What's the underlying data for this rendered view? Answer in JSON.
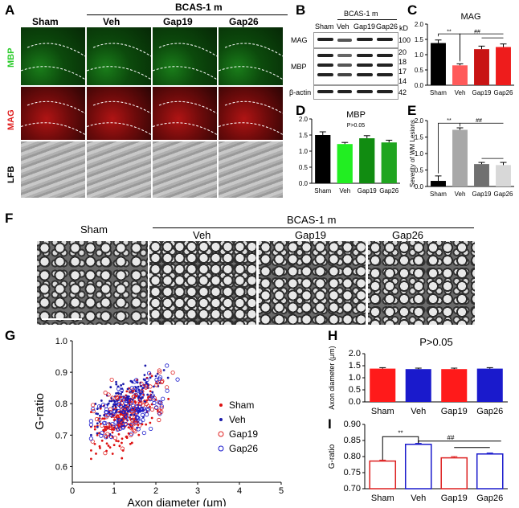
{
  "panels": {
    "A": "A",
    "B": "B",
    "C": "C",
    "D": "D",
    "E": "E",
    "F": "F",
    "G": "G",
    "H": "H",
    "I": "I"
  },
  "panel_a": {
    "groups": [
      "Sham",
      "Veh",
      "Gap19",
      "Gap26"
    ],
    "bcas_label": "BCAS-1 m",
    "rows": [
      "MBP",
      "MAG",
      "LFB"
    ],
    "colors": {
      "mbp": "#2ecc2e",
      "mag": "#e01e1e",
      "lfb": "#000000"
    }
  },
  "panel_b": {
    "bcas_label": "BCAS-1 m",
    "lanes": [
      "Sham",
      "Veh",
      "Gap19",
      "Gap26"
    ],
    "kd_label": "kD",
    "rows": [
      {
        "label": "MAG",
        "mw": [
          "100"
        ]
      },
      {
        "label": "MBP",
        "mw": [
          "20",
          "18",
          "17",
          "14"
        ]
      },
      {
        "label": "β-actin",
        "mw": [
          "42"
        ]
      }
    ]
  },
  "chart_data": [
    {
      "id": "C",
      "type": "bar",
      "title": "MAG",
      "categories": [
        "Sham",
        "Veh",
        "Gap19",
        "Gap26"
      ],
      "values": [
        1.38,
        0.65,
        1.18,
        1.25
      ],
      "errors": [
        0.1,
        0.05,
        0.1,
        0.1
      ],
      "colors": [
        "#000000",
        "#ff5a5a",
        "#c81414",
        "#ee1c1c"
      ],
      "ylim": [
        0,
        2.0
      ],
      "yticks": [
        "0.0",
        "0.5",
        "1.0",
        "1.5",
        "2.0"
      ],
      "annotations": [
        "**",
        "##"
      ]
    },
    {
      "id": "D",
      "type": "bar",
      "title": "MBP",
      "subtitle": "P>0.05",
      "categories": [
        "Sham",
        "Veh",
        "Gap19",
        "Gap26"
      ],
      "values": [
        1.5,
        1.22,
        1.4,
        1.27
      ],
      "errors": [
        0.1,
        0.05,
        0.08,
        0.07
      ],
      "colors": [
        "#000000",
        "#22ee22",
        "#118c11",
        "#1fa51f"
      ],
      "ylim": [
        0,
        2.0
      ],
      "yticks": [
        "0.0",
        "0.5",
        "1.0",
        "1.5",
        "2.0"
      ]
    },
    {
      "id": "E",
      "type": "bar",
      "ylabel": "Severity of  WM Lesions",
      "categories": [
        "Sham",
        "Veh",
        "Gap19",
        "Gap26"
      ],
      "values": [
        0.17,
        1.72,
        0.68,
        0.65
      ],
      "errors": [
        0.15,
        0.06,
        0.05,
        0.08
      ],
      "colors": [
        "#000000",
        "#a8a8a8",
        "#707070",
        "#d8d8d8"
      ],
      "ylim": [
        0,
        2.0
      ],
      "yticks": [
        "0.0",
        "0.5",
        "1.0",
        "1.5",
        "2.0"
      ],
      "annotations": [
        "**",
        "##"
      ]
    },
    {
      "id": "G",
      "type": "scatter",
      "xlabel": "Axon diameter (μm)",
      "ylabel": "G-ratio",
      "xlim": [
        0,
        5
      ],
      "ylim": [
        0.55,
        1.0
      ],
      "xticks": [
        "0",
        "1",
        "2",
        "3",
        "4",
        "5"
      ],
      "yticks": [
        "0.6",
        "0.7",
        "0.8",
        "0.9",
        "1.0"
      ],
      "series": [
        {
          "name": "Sham",
          "marker": "dot",
          "color": "#dd1111",
          "cx": 1.3,
          "cy": 0.76,
          "sx": 0.45,
          "sy": 0.06,
          "n": 150
        },
        {
          "name": "Veh",
          "marker": "dot",
          "color": "#1a1aaa",
          "cx": 1.35,
          "cy": 0.81,
          "sx": 0.45,
          "sy": 0.05,
          "n": 160
        },
        {
          "name": "Gap19",
          "marker": "ring",
          "color": "#e02020",
          "cx": 1.45,
          "cy": 0.78,
          "sx": 0.5,
          "sy": 0.06,
          "n": 110
        },
        {
          "name": "Gap26",
          "marker": "ring",
          "color": "#1a1acc",
          "cx": 1.45,
          "cy": 0.79,
          "sx": 0.5,
          "sy": 0.06,
          "n": 110
        }
      ]
    },
    {
      "id": "H",
      "type": "bar",
      "title": "P>0.05",
      "ylabel": "Axon diameter (μm)",
      "categories": [
        "Sham",
        "Veh",
        "Gap19",
        "Gap26"
      ],
      "values": [
        1.38,
        1.36,
        1.36,
        1.38
      ],
      "errors": [
        0.04,
        0.04,
        0.04,
        0.04
      ],
      "colors": [
        "#ff1a1a",
        "#1a1acc",
        "#ff1a1a",
        "#1a1acc"
      ],
      "ylim": [
        0,
        2.0
      ],
      "yticks": [
        "0.0",
        "0.5",
        "1.0",
        "1.5",
        "2.0"
      ]
    },
    {
      "id": "I",
      "type": "bar",
      "ylabel": "G-ratio",
      "categories": [
        "Sham",
        "Veh",
        "Gap19",
        "Gap26"
      ],
      "values": [
        0.786,
        0.838,
        0.796,
        0.808
      ],
      "errors": [
        0.003,
        0.003,
        0.004,
        0.003
      ],
      "fill": "#ffffff",
      "colors": [
        "#dd2020",
        "#1a1acc",
        "#dd2020",
        "#1a1acc"
      ],
      "ylim": [
        0.7,
        0.9
      ],
      "yticks": [
        "0.70",
        "0.75",
        "0.80",
        "0.85",
        "0.90"
      ],
      "annotations": [
        "**",
        "##"
      ]
    }
  ],
  "panel_f": {
    "groups": [
      "Sham",
      "Veh",
      "Gap19",
      "Gap26"
    ],
    "bcas_label": "BCAS-1 m"
  }
}
